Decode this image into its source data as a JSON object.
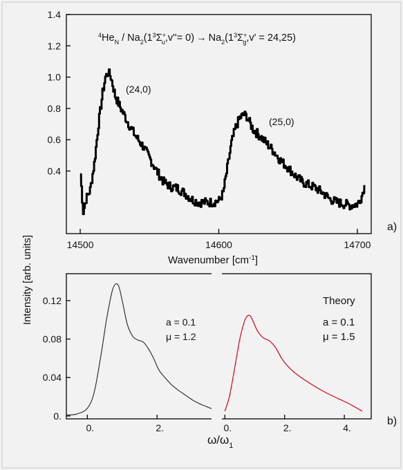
{
  "chart_data": [
    {
      "panel": "a",
      "type": "line",
      "title": "4HeN / Na2(13Σu+,v''= 0) → Na2(13Σg+,v' = 24,25)",
      "title_parts": {
        "sup_iso": "4",
        "he": "He",
        "sub_n": "N",
        "mid": " / Na",
        "sub_2a": "2",
        "paren1": "(1",
        "sup_3a": "3",
        "sigma": "Σ",
        "sup_plus": "+",
        "sub_u": "u",
        "rest1": ",v''= 0)",
        "arrow": "→",
        "na2": "Na",
        "sub_2b": "2",
        "paren2": "(1",
        "sup_3b": "3",
        "sub_g": "g",
        "rest2": ",v' = 24,25)"
      },
      "xlabel": "Wavenumber  [cm-1]",
      "xlabel_main": "Wavenumber  [cm",
      "xlabel_sup": "-1",
      "xlabel_end": "]",
      "ylabel": "Intensity  [arb. units]",
      "xlim": [
        14490,
        14710
      ],
      "ylim": [
        0.0,
        1.4
      ],
      "xticks": [
        14500,
        14600,
        14700
      ],
      "xtick_labels": [
        "14500",
        "14600",
        "14700"
      ],
      "yticks": [
        0.4,
        0.6,
        0.8,
        1.0,
        1.2,
        1.4
      ],
      "ytick_labels": [
        "0.4",
        "0.6",
        "0.8",
        "1.0",
        "1.2",
        "1.4"
      ],
      "annotations": [
        {
          "text": "(24,0)",
          "x": 14528,
          "y": 1.04
        },
        {
          "text": "(25,0)",
          "x": 14630,
          "y": 0.75
        }
      ],
      "panel_label": "a)",
      "series": [
        {
          "color": "#000000",
          "x": [
            14500,
            14502,
            14504,
            14507,
            14510,
            14513,
            14516,
            14518,
            14520,
            14522,
            14525,
            14528,
            14532,
            14536,
            14540,
            14545,
            14550,
            14555,
            14560,
            14565,
            14570,
            14575,
            14580,
            14585,
            14590,
            14595,
            14600,
            14603,
            14606,
            14609,
            14612,
            14615,
            14618,
            14620,
            14622,
            14625,
            14630,
            14635,
            14640,
            14645,
            14650,
            14655,
            14660,
            14665,
            14670,
            14675,
            14680,
            14685,
            14690,
            14695,
            14700,
            14703,
            14705
          ],
          "y": [
            0.38,
            0.14,
            0.22,
            0.28,
            0.45,
            0.7,
            0.9,
            1.0,
            1.03,
            1.0,
            0.88,
            0.82,
            0.75,
            0.68,
            0.62,
            0.56,
            0.48,
            0.4,
            0.33,
            0.3,
            0.29,
            0.26,
            0.22,
            0.2,
            0.2,
            0.2,
            0.21,
            0.26,
            0.42,
            0.58,
            0.68,
            0.74,
            0.76,
            0.75,
            0.71,
            0.66,
            0.62,
            0.57,
            0.52,
            0.46,
            0.42,
            0.37,
            0.33,
            0.31,
            0.29,
            0.26,
            0.22,
            0.2,
            0.19,
            0.18,
            0.19,
            0.24,
            0.31
          ]
        }
      ]
    },
    {
      "panel": "b-left",
      "type": "line",
      "xlabel": "ω/ω1",
      "xlabel_main": "ω/ω",
      "xlabel_sub": "1",
      "xlim": [
        -0.6,
        3.6
      ],
      "ylim": [
        -0.003,
        0.148
      ],
      "xticks": [
        0,
        2
      ],
      "xtick_labels": [
        "0.",
        "2."
      ],
      "yticks": [
        0.0,
        0.04,
        0.08,
        0.12
      ],
      "ytick_labels": [
        "0.",
        "0.04",
        "0.08",
        "0.12"
      ],
      "annotations": [
        "a = 0.1",
        "μ = 1.2"
      ],
      "series": [
        {
          "color": "#333333",
          "x": [
            -0.6,
            -0.3,
            0.0,
            0.2,
            0.4,
            0.55,
            0.7,
            0.8,
            0.9,
            1.0,
            1.15,
            1.3,
            1.45,
            1.6,
            1.75,
            1.9,
            2.05,
            2.2,
            2.4,
            2.6,
            2.8,
            3.0,
            3.2,
            3.4,
            3.6
          ],
          "y": [
            0.001,
            0.002,
            0.008,
            0.025,
            0.065,
            0.1,
            0.128,
            0.137,
            0.135,
            0.12,
            0.095,
            0.083,
            0.079,
            0.077,
            0.07,
            0.06,
            0.048,
            0.041,
            0.033,
            0.027,
            0.022,
            0.017,
            0.013,
            0.01,
            0.007
          ]
        }
      ]
    },
    {
      "panel": "b-right",
      "type": "line",
      "title": "Theory",
      "xlim": [
        -0.1,
        4.9
      ],
      "ylim": [
        -0.003,
        0.148
      ],
      "xticks": [
        0,
        2,
        4
      ],
      "xtick_labels": [
        "0.",
        "2.",
        "4."
      ],
      "annotations": [
        "a = 0.1",
        "μ = 1.5"
      ],
      "panel_label": "b)",
      "series": [
        {
          "color": "#e0001b",
          "x": [
            0.0,
            0.15,
            0.3,
            0.5,
            0.65,
            0.75,
            0.85,
            0.95,
            1.1,
            1.3,
            1.5,
            1.7,
            1.9,
            2.1,
            2.3,
            2.6,
            3.0,
            3.4,
            3.8,
            4.2,
            4.6
          ],
          "y": [
            0.005,
            0.02,
            0.045,
            0.08,
            0.098,
            0.104,
            0.104,
            0.098,
            0.088,
            0.081,
            0.078,
            0.071,
            0.06,
            0.052,
            0.046,
            0.039,
            0.031,
            0.024,
            0.018,
            0.012,
            0.005
          ]
        }
      ]
    }
  ]
}
